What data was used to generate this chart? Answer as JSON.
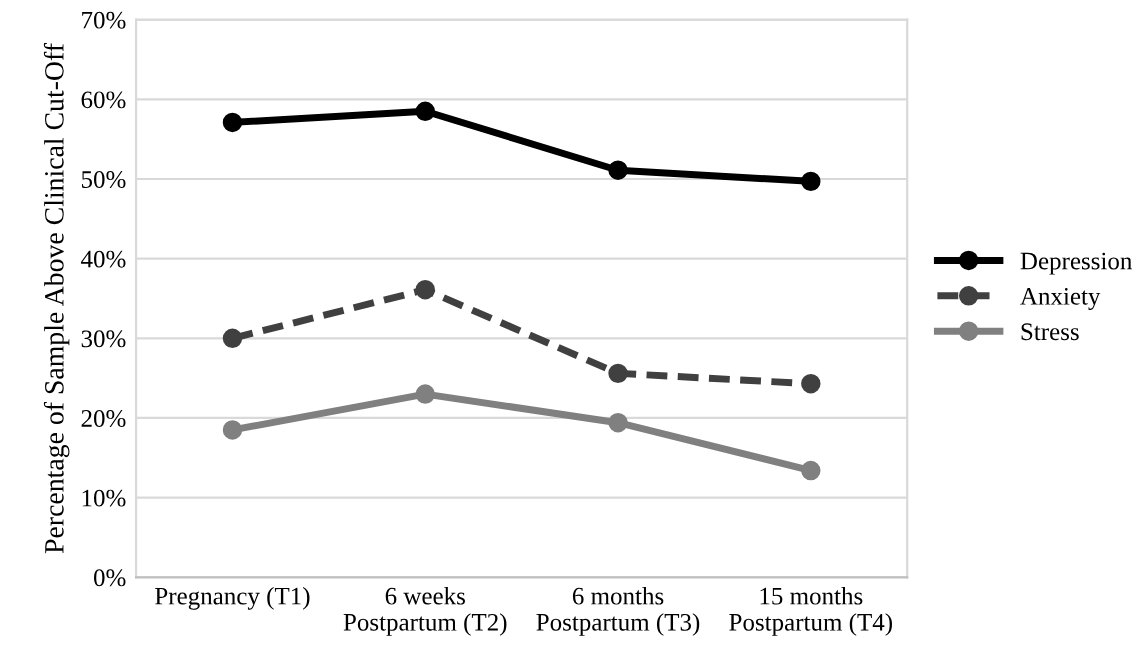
{
  "chart_data": {
    "type": "line",
    "ylabel": "Percentage of Sample Above Clinical Cut-Off",
    "categories": [
      "Pregnancy (T1)",
      "6 weeks\nPostpartum (T2)",
      "6 months\nPostpartum (T3)",
      "15 months\nPostpartum (T4)"
    ],
    "series": [
      {
        "name": "Depression",
        "color": "#000000",
        "line_style": "solid",
        "values": [
          57.1,
          58.5,
          51.1,
          49.7
        ]
      },
      {
        "name": "Anxiety",
        "color": "#404040",
        "line_style": "dashed",
        "values": [
          30.0,
          36.1,
          25.6,
          24.3
        ]
      },
      {
        "name": "Stress",
        "color": "#808080",
        "line_style": "solid",
        "values": [
          18.5,
          23.0,
          19.4,
          13.4
        ]
      }
    ],
    "ylim": [
      0,
      70
    ],
    "yticks": [
      {
        "value": 0,
        "label": "0%"
      },
      {
        "value": 10,
        "label": "10%"
      },
      {
        "value": 20,
        "label": "20%"
      },
      {
        "value": 30,
        "label": "30%"
      },
      {
        "value": 40,
        "label": "40%"
      },
      {
        "value": 50,
        "label": "50%"
      },
      {
        "value": 60,
        "label": "60%"
      },
      {
        "value": 70,
        "label": "70%"
      }
    ],
    "grid": "y",
    "legend": "right",
    "marker": "circle"
  }
}
